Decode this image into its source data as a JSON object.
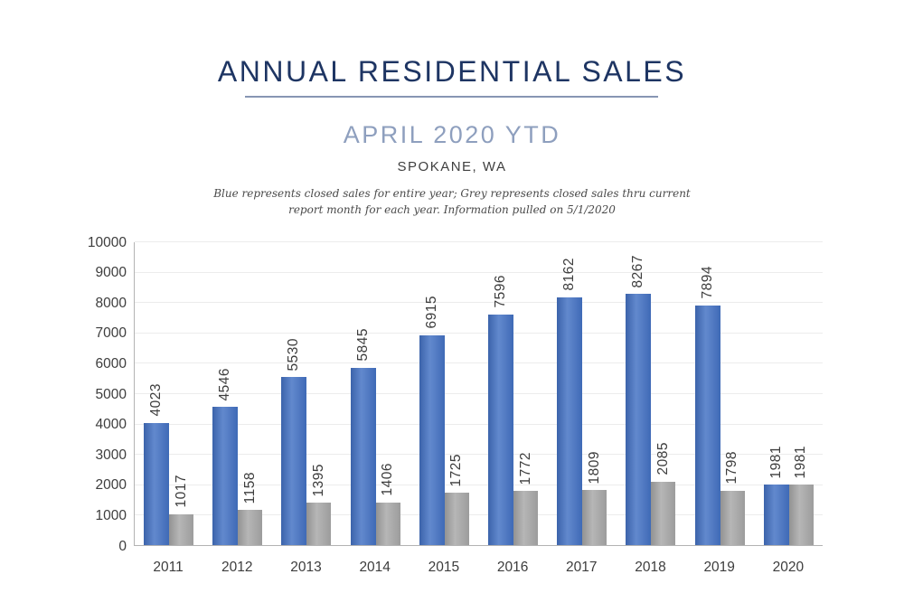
{
  "header": {
    "title": "ANNUAL RESIDENTIAL SALES",
    "subtitle": "APRIL 2020 YTD",
    "location": "SPOKANE, WA",
    "note_line1": "Blue represents closed sales for entire year; Grey represents closed sales thru current",
    "note_line2": "report month for each year.  Information pulled on 5/1/2020"
  },
  "colors": {
    "title_navy": "#1e3563",
    "underline_blue_grey": "#8796b3",
    "subtitle_blue_grey": "#8e9fbe",
    "axis_text": "#3d3d3d",
    "gridline": "#ececec",
    "axis_line": "#b3b3b3",
    "blue_bar": "#4472c4",
    "grey_bar": "#a8a8a8"
  },
  "chart_data": {
    "type": "bar",
    "title": "ANNUAL RESIDENTIAL SALES — APRIL 2020 YTD — SPOKANE, WA",
    "categories": [
      "2011",
      "2012",
      "2013",
      "2014",
      "2015",
      "2016",
      "2017",
      "2018",
      "2019",
      "2020"
    ],
    "series": [
      {
        "name": "Closed sales for entire year (Blue)",
        "color": "#4472c4",
        "values": [
          4023,
          4546,
          5530,
          5845,
          6915,
          7596,
          8162,
          8267,
          7894,
          1981
        ]
      },
      {
        "name": "Closed sales thru current report month (Grey)",
        "color": "#a8a8a8",
        "values": [
          1017,
          1158,
          1395,
          1406,
          1725,
          1772,
          1809,
          2085,
          1798,
          1981
        ]
      }
    ],
    "xlabel": "",
    "ylabel": "",
    "ylim": [
      0,
      10000
    ],
    "yticks": [
      0,
      1000,
      2000,
      3000,
      4000,
      5000,
      6000,
      7000,
      8000,
      9000,
      10000
    ],
    "grid": true,
    "legend_position": "none",
    "value_labels": "rotated-90-above-bars"
  }
}
